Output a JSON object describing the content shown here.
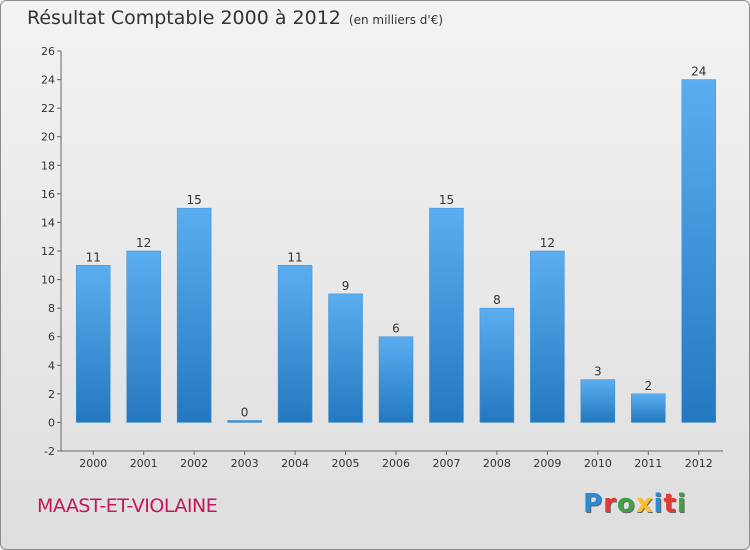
{
  "chart_data": {
    "type": "bar",
    "title": "Résultat Comptable 2000 à 2012",
    "subtitle": "(en milliers d'€)",
    "categories": [
      "2000",
      "2001",
      "2002",
      "2003",
      "2004",
      "2005",
      "2006",
      "2007",
      "2008",
      "2009",
      "2010",
      "2011",
      "2012"
    ],
    "values": [
      11,
      12,
      15,
      0,
      11,
      9,
      6,
      15,
      8,
      12,
      3,
      2,
      24
    ],
    "ylim": [
      -2,
      26
    ],
    "yticks": [
      -2,
      0,
      2,
      4,
      6,
      8,
      10,
      12,
      14,
      16,
      18,
      20,
      22,
      24,
      26
    ],
    "xlabel": "",
    "ylabel": "",
    "grid": false,
    "bar_color": "#4a9fdf"
  },
  "footer": {
    "place": "MAAST-ET-VIOLAINE",
    "logo_letters": [
      {
        "ch": "P",
        "color": "#2a8bd6"
      },
      {
        "ch": "r",
        "color": "#e53935"
      },
      {
        "ch": "o",
        "color": "#43a047"
      },
      {
        "ch": "x",
        "color": "#fbc02d"
      },
      {
        "ch": "i",
        "color": "#2a8bd6"
      },
      {
        "ch": "t",
        "color": "#e53935"
      },
      {
        "ch": "i",
        "color": "#43a047"
      }
    ]
  }
}
